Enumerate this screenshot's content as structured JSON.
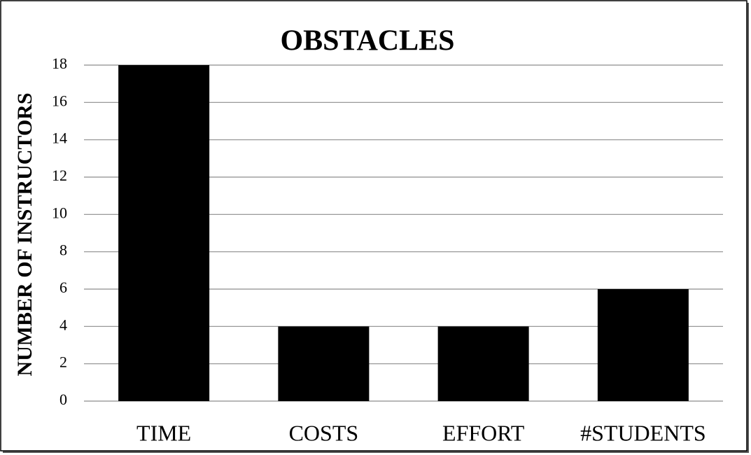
{
  "chart_data": {
    "type": "bar",
    "title": "OBSTACLES",
    "y_label": "NUMBER OF INSTRUCTORS",
    "categories": [
      "TIME",
      "COSTS",
      "EFFORT",
      "#STUDENTS"
    ],
    "values": [
      18,
      4,
      4,
      6
    ],
    "color": "#000000",
    "ylim": [
      0,
      18
    ],
    "yticks": [
      0,
      2,
      4,
      6,
      8,
      10,
      12,
      14,
      16,
      18
    ],
    "grid": true
  }
}
